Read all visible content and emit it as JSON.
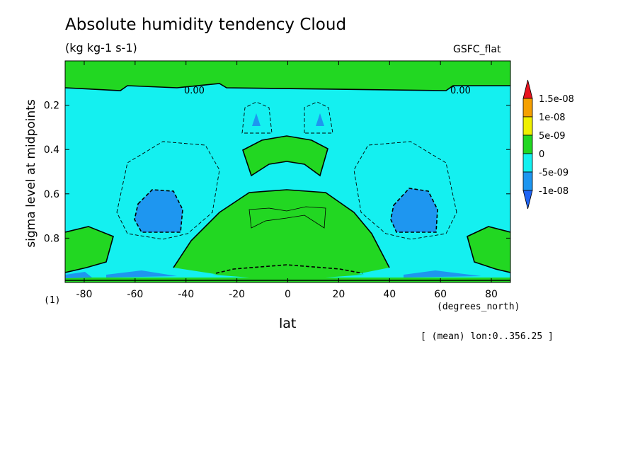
{
  "chart_data": {
    "type": "heatmap",
    "title": "Absolute humidity tendency Cloud",
    "units": "(kg kg-1 s-1)",
    "model_label": "GSFC_flat",
    "xlabel": "lat",
    "x_units_label": "(degrees_north)",
    "ylabel": "sigma level at midpoints",
    "note_left": "(1)",
    "range_note": "[ (mean) lon:0..356.25 ]",
    "xlim": [
      -87.5,
      87.5
    ],
    "ylim": [
      1.0,
      0.0
    ],
    "x_ticks": [
      -80,
      -60,
      -40,
      -20,
      0,
      20,
      40,
      60,
      80
    ],
    "x_tick_labels": [
      "-80",
      "-60",
      "-40",
      "-20",
      "0",
      "20",
      "40",
      "60",
      "80"
    ],
    "y_ticks": [
      0.2,
      0.4,
      0.6,
      0.8
    ],
    "y_tick_labels": [
      "0.2",
      "0.4",
      "0.6",
      "0.8"
    ],
    "colorbar": {
      "labels": [
        "1.5e-08",
        "1e-08",
        "5e-09",
        "0",
        "-5e-09",
        "-1e-08"
      ],
      "colors": [
        "#e8141e",
        "#f5a000",
        "#f0f000",
        "#22d722",
        "#14f0f0",
        "#1e96f0",
        "#1e64f5"
      ]
    },
    "contour_labels": [
      "0.00",
      "0.00"
    ],
    "colors": {
      "positive": "#22d722",
      "near_zero_negative": "#14f0f0",
      "negative": "#1e96f0"
    }
  }
}
